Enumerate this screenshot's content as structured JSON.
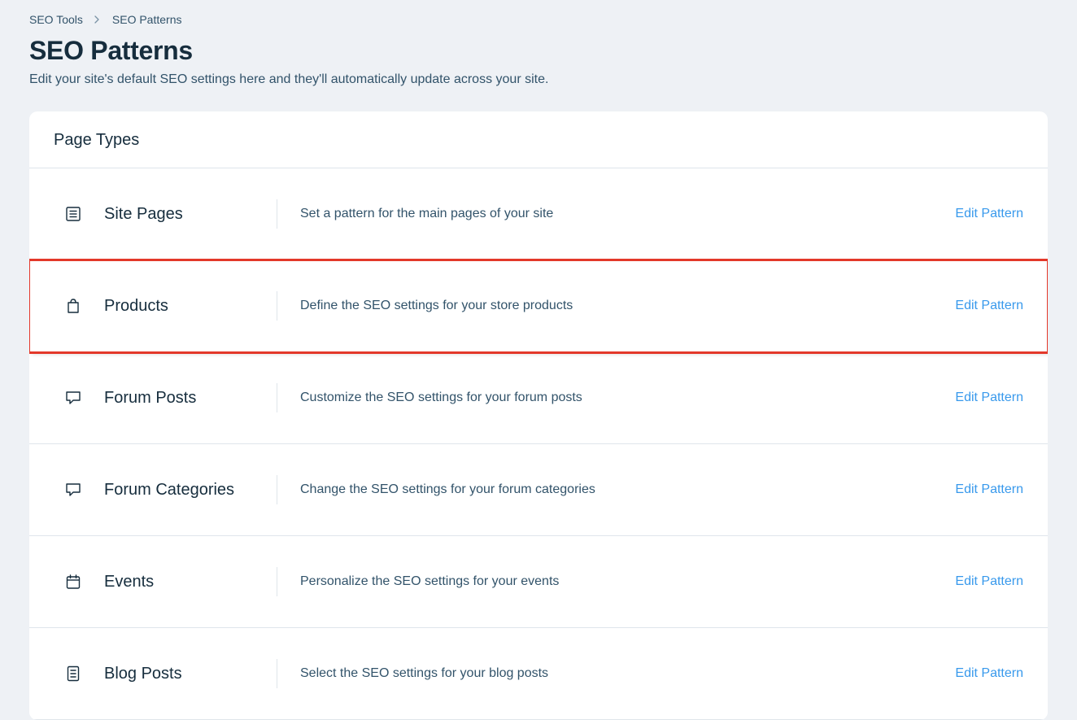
{
  "breadcrumb": {
    "items": [
      "SEO Tools",
      "SEO Patterns"
    ]
  },
  "header": {
    "title": "SEO Patterns",
    "subtitle": "Edit your site's default SEO settings here and they'll automatically update across your site."
  },
  "section": {
    "title": "Page Types"
  },
  "rows": [
    {
      "icon": "pages-icon",
      "label": "Site Pages",
      "description": "Set a pattern for the main pages of your site",
      "action": "Edit Pattern",
      "highlighted": false
    },
    {
      "icon": "product-icon",
      "label": "Products",
      "description": "Define the SEO settings for your store products",
      "action": "Edit Pattern",
      "highlighted": true
    },
    {
      "icon": "chat-icon",
      "label": "Forum Posts",
      "description": "Customize the SEO settings for your forum posts",
      "action": "Edit Pattern",
      "highlighted": false
    },
    {
      "icon": "chat-icon",
      "label": "Forum Categories",
      "description": "Change the SEO settings for your forum categories",
      "action": "Edit Pattern",
      "highlighted": false
    },
    {
      "icon": "calendar-icon",
      "label": "Events",
      "description": "Personalize the SEO settings for your events",
      "action": "Edit Pattern",
      "highlighted": false
    },
    {
      "icon": "blog-icon",
      "label": "Blog Posts",
      "description": "Select the SEO settings for your blog posts",
      "action": "Edit Pattern",
      "highlighted": false
    }
  ],
  "colors": {
    "page_bg": "#eef1f5",
    "card_bg": "#ffffff",
    "text_primary": "#162d3d",
    "text_secondary": "#32536a",
    "link": "#3899ec",
    "divider": "#dfe5eb",
    "highlight_border": "#e3382a"
  }
}
